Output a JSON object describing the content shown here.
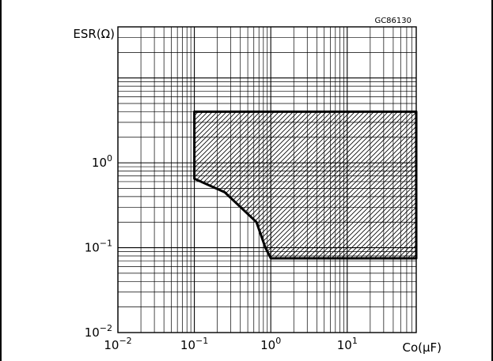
{
  "chart_data": {
    "type": "area",
    "figure_code": "GC86130",
    "ylabel": "ESR(Ω)",
    "xlabel": "Co(μF)",
    "x_scale": "log",
    "y_scale": "log",
    "xlim": [
      0.01,
      80
    ],
    "ylim": [
      0.01,
      40
    ],
    "grid": true,
    "x_ticks": [
      {
        "value": 0.01,
        "base": "10",
        "exp": "−2"
      },
      {
        "value": 0.1,
        "base": "10",
        "exp": "−1"
      },
      {
        "value": 1,
        "base": "10",
        "exp": "0"
      },
      {
        "value": 10,
        "base": "10",
        "exp": "1"
      }
    ],
    "y_ticks": [
      {
        "value": 1,
        "base": "10",
        "exp": "0"
      },
      {
        "value": 0.1,
        "base": "10",
        "exp": "−1"
      },
      {
        "value": 0.01,
        "base": "10",
        "exp": "−2"
      }
    ],
    "stable_region": [
      {
        "x": 0.1,
        "y": 4.0
      },
      {
        "x": 80,
        "y": 4.0
      },
      {
        "x": 80,
        "y": 0.075
      },
      {
        "x": 1.0,
        "y": 0.075
      },
      {
        "x": 0.85,
        "y": 0.1
      },
      {
        "x": 0.65,
        "y": 0.2
      },
      {
        "x": 0.25,
        "y": 0.45
      },
      {
        "x": 0.1,
        "y": 0.65
      }
    ]
  }
}
